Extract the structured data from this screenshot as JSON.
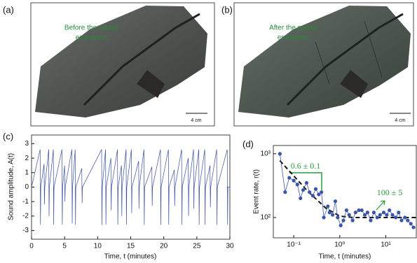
{
  "panels": {
    "a": {
      "label": "(a)",
      "caption": [
        "Before the sound",
        "emissions"
      ],
      "scale": "4 cm"
    },
    "b": {
      "label": "(b)",
      "caption": [
        "After the sound",
        "emissions"
      ],
      "scale": "4 cm"
    }
  },
  "chart_data": [
    {
      "type": "line",
      "label": "(c)",
      "x_label": "Time, t (minutes)",
      "y_label": "Sound amplitude, A(t)",
      "xlim": [
        0,
        30
      ],
      "ylim": [
        -3.6,
        3.6
      ],
      "xticks": [
        0,
        5,
        10,
        15,
        20,
        25,
        30
      ],
      "yticks": [
        -3,
        -2,
        -1,
        0,
        1,
        2,
        3
      ],
      "series": [
        {
          "color": "#3b4fa0",
          "x": [
            0,
            1.3,
            1.35,
            1.4,
            1.9,
            1.95,
            2,
            2.6,
            2.65,
            2.7,
            3.3,
            3.35,
            3.4,
            4.6,
            4.65,
            4.7,
            5,
            5.05,
            5.1,
            6.1,
            6.15,
            6.2,
            6.6,
            6.65,
            6.7,
            7.6,
            7.65,
            7.7,
            10.6,
            10.65,
            10.7,
            11.2,
            11.25,
            11.3,
            12,
            12.05,
            12.1,
            13,
            13.05,
            13.1,
            13.6,
            13.65,
            13.7,
            14.3,
            14.35,
            14.4,
            15.1,
            15.15,
            15.2,
            16.2,
            16.25,
            16.3,
            17,
            17.05,
            17.1,
            18.2,
            18.25,
            18.3,
            19.5,
            19.55,
            19.6,
            20.7,
            20.75,
            20.8,
            21.6,
            21.65,
            21.7,
            22.7,
            22.75,
            22.8,
            23.7,
            23.75,
            23.8,
            24.5,
            24.55,
            24.6,
            25.3,
            25.35,
            25.4,
            26.2,
            26.25,
            26.3,
            27,
            27.05,
            27.1,
            28,
            28.05,
            28.1,
            29.6,
            29.65,
            29.7,
            30
          ],
          "values": [
            0,
            2.6,
            -2.6,
            0,
            1.6,
            -1.2,
            0,
            2.6,
            -2,
            0,
            2.6,
            -2.6,
            0,
            2.6,
            -2.6,
            0,
            1.5,
            -1,
            0,
            2.6,
            -2.5,
            0,
            2.6,
            -2.6,
            0,
            1.3,
            -1.1,
            0,
            2.6,
            -2.6,
            0,
            2.6,
            -2.6,
            0,
            2,
            -1.6,
            0,
            2.6,
            -2.6,
            0,
            1.5,
            -2,
            0,
            2.6,
            -2.6,
            0,
            2.6,
            -1.8,
            0,
            1.8,
            -1.5,
            0,
            2.6,
            -2.6,
            0,
            1.4,
            -1.3,
            0,
            2.6,
            -2.6,
            0,
            2.6,
            -2.6,
            0,
            1.2,
            -1.3,
            0,
            2.6,
            -2.6,
            0,
            2,
            -2,
            0,
            2.6,
            -1.5,
            0,
            2.6,
            -2.6,
            0,
            2.6,
            -2.6,
            0,
            1.5,
            -1.4,
            0,
            2.6,
            -2.6,
            0,
            2.6,
            -2.6,
            0,
            0
          ]
        }
      ]
    },
    {
      "type": "scatter",
      "label": "(d)",
      "x_label": "Time, t (minutes)",
      "y_label": "Event rate, r(t)",
      "xscale": "log",
      "yscale": "log",
      "connected": true,
      "xlim": [
        0.036,
        46
      ],
      "ylim": [
        48,
        1350
      ],
      "xticks": [
        {
          "value": 0.1,
          "label": "10⁻¹"
        },
        {
          "value": 1,
          "label": "10⁰"
        },
        {
          "value": 10,
          "label": "10¹"
        }
      ],
      "yticks": [
        {
          "value": 100,
          "label": "10²"
        },
        {
          "value": 1000,
          "label": "10³"
        }
      ],
      "series": [
        {
          "color": "#3b55a8",
          "x": [
            0.05,
            0.065,
            0.08,
            0.1,
            0.12,
            0.14,
            0.16,
            0.19,
            0.22,
            0.26,
            0.3,
            0.35,
            0.4,
            0.45,
            0.55,
            0.6,
            0.7,
            0.8,
            0.9,
            1.05,
            1.2,
            1.4,
            1.6,
            1.9,
            2.2,
            2.6,
            3,
            3.5,
            4,
            4.7,
            5.5,
            6.5,
            7.5,
            9,
            10.5,
            12,
            14,
            16.5,
            19,
            22,
            26,
            30,
            35,
            40
          ],
          "values": [
            1000,
            250,
            420,
            380,
            330,
            200,
            270,
            350,
            250,
            220,
            280,
            230,
            250,
            100,
            150,
            120,
            110,
            180,
            100,
            75,
            90,
            130,
            110,
            90,
            120,
            130,
            130,
            110,
            120,
            90,
            120,
            100,
            110,
            120,
            110,
            130,
            110,
            100,
            120,
            90,
            100,
            90,
            80,
            70
          ]
        }
      ],
      "fit": {
        "color": "#111",
        "x": [
          0.05,
          0.1,
          0.2,
          0.5,
          1,
          2,
          5,
          46
        ],
        "values": [
          780,
          450,
          260,
          140,
          105,
          100,
          100,
          100
        ]
      },
      "annotations": [
        "0.6 ± 0.1",
        "100 ± 5"
      ]
    }
  ]
}
